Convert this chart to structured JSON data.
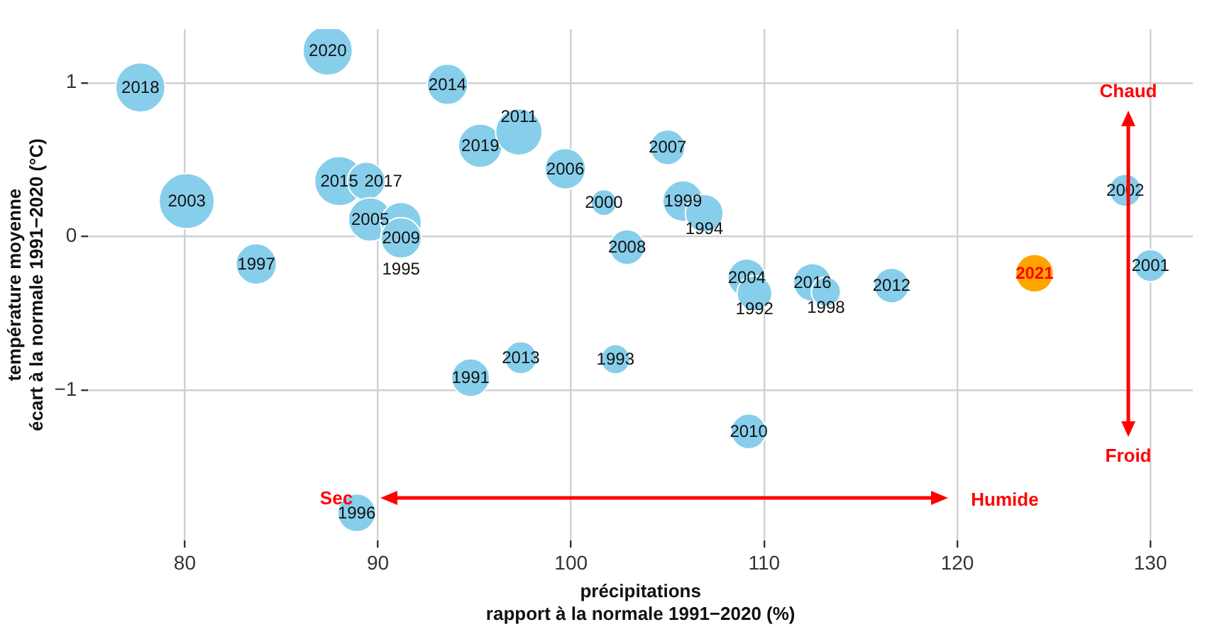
{
  "chart_data": {
    "type": "bubble",
    "xlabel": "précipitations\nrapport à la normale 1991−2020 (%)",
    "ylabel": "température moyenne\nécart à la normale 1991−2020 (°C)",
    "series": [
      {
        "color": "#87ceeb",
        "x": [
          77.7,
          87.4,
          93.6,
          80.1,
          88.0,
          89.4,
          89.6,
          91.2,
          91.2,
          83.7,
          95.3,
          97.3,
          99.7,
          101.7,
          105.0,
          105.8,
          106.9,
          102.9,
          109.1,
          109.5,
          112.5,
          113.2,
          116.6,
          128.7,
          130.0,
          97.4,
          94.8,
          102.3,
          109.2,
          88.9
        ],
        "values": [
          0.97,
          1.21,
          0.99,
          0.23,
          0.36,
          0.36,
          0.11,
          0.09,
          -0.01,
          -0.18,
          0.59,
          0.68,
          0.44,
          0.22,
          0.58,
          0.23,
          0.15,
          -0.07,
          -0.27,
          -0.37,
          -0.3,
          -0.36,
          -0.32,
          0.3,
          -0.19,
          -0.79,
          -0.92,
          -0.8,
          -1.27,
          -1.8
        ],
        "sizes": [
          0.8,
          0.8,
          0.54,
          1,
          0.8,
          0.47,
          0.62,
          0.54,
          0.54,
          0.54,
          0.62,
          0.71,
          0.54,
          0.22,
          0.4,
          0.54,
          0.47,
          0.4,
          0.47,
          0.4,
          0.47,
          0.28,
          0.4,
          0.34,
          0.34,
          0.34,
          0.47,
          0.28,
          0.4,
          0.47
        ]
      },
      {
        "color": "#ffa500",
        "x": [
          124.0
        ],
        "values": [
          -0.24
        ],
        "sizes": [
          0.47
        ]
      }
    ],
    "xlim": [
      75,
      132.2
    ],
    "ylim": [
      -1.98,
      1.35
    ],
    "xticks": [
      80,
      90,
      100,
      110,
      120,
      130
    ],
    "yticks": [
      -1,
      0,
      1
    ],
    "grid": true,
    "annotations": [
      "Chaud",
      "Froid",
      "Sec",
      "Humide",
      {
        "text": "2018",
        "x": 77.7,
        "y": 0.97
      },
      {
        "text": "2020",
        "x": 87.4,
        "y": 1.21
      },
      {
        "text": "2014",
        "x": 93.6,
        "y": 0.99
      },
      {
        "text": "2003",
        "x": 80.1,
        "y": 0.23
      },
      {
        "text": "2015",
        "x": 88.0,
        "y": 0.36
      },
      {
        "text": "2017",
        "x": 89.4,
        "y": 0.36
      },
      {
        "text": "2005",
        "x": 89.6,
        "y": 0.11
      },
      {
        "text": "2009",
        "x": 91.2,
        "y": 0.09
      },
      {
        "text": "1995",
        "x": 91.2,
        "y": -0.01
      },
      {
        "text": "1997",
        "x": 83.7,
        "y": -0.18
      },
      {
        "text": "2019",
        "x": 95.3,
        "y": 0.59
      },
      {
        "text": "2011",
        "x": 97.3,
        "y": 0.68
      },
      {
        "text": "2006",
        "x": 99.7,
        "y": 0.44
      },
      {
        "text": "2000",
        "x": 101.7,
        "y": 0.22
      },
      {
        "text": "2007",
        "x": 105.0,
        "y": 0.58
      },
      {
        "text": "1999",
        "x": 105.8,
        "y": 0.23
      },
      {
        "text": "1994",
        "x": 106.9,
        "y": 0.15
      },
      {
        "text": "2008",
        "x": 102.9,
        "y": -0.07
      },
      {
        "text": "2004",
        "x": 109.1,
        "y": -0.27
      },
      {
        "text": "1992",
        "x": 109.5,
        "y": -0.37
      },
      {
        "text": "2016",
        "x": 112.5,
        "y": -0.3
      },
      {
        "text": "1998",
        "x": 113.2,
        "y": -0.36
      },
      {
        "text": "2012",
        "x": 116.6,
        "y": -0.32
      },
      {
        "text": "2002",
        "x": 128.7,
        "y": 0.3
      },
      {
        "text": "2001",
        "x": 130.0,
        "y": -0.19
      },
      {
        "text": "2013",
        "x": 97.4,
        "y": -0.79
      },
      {
        "text": "1991",
        "x": 94.8,
        "y": -0.92
      },
      {
        "text": "1993",
        "x": 102.3,
        "y": -0.8
      },
      {
        "text": "2010",
        "x": 109.2,
        "y": -1.27
      },
      {
        "text": "1996",
        "x": 88.9,
        "y": -1.8
      },
      {
        "text": "2021",
        "x": 124.0,
        "y": -0.24
      }
    ]
  }
}
